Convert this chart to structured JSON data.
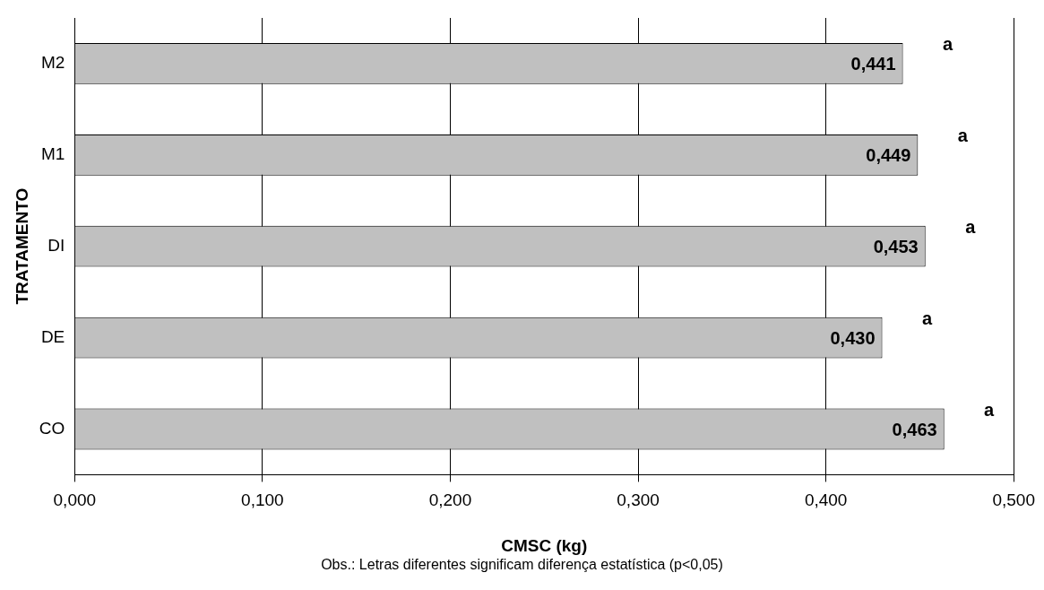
{
  "chart_data": {
    "type": "bar",
    "orientation": "horizontal",
    "xlabel": "CMSC (kg)",
    "ylabel": "TRATAMENTO",
    "categories": [
      "M2",
      "M1",
      "DI",
      "DE",
      "CO"
    ],
    "values": [
      0.441,
      0.449,
      0.453,
      0.43,
      0.463
    ],
    "value_labels": [
      "0,441",
      "0,449",
      "0,453",
      "0,430",
      "0,463"
    ],
    "color": "#c0c0c0",
    "xlim": [
      0,
      0.5
    ],
    "xticks": [
      {
        "value": 0,
        "label": "0,000"
      },
      {
        "value": 0.1,
        "label": "0,100"
      },
      {
        "value": 0.2,
        "label": "0,200"
      },
      {
        "value": 0.3,
        "label": "0,300"
      },
      {
        "value": 0.4,
        "label": "0,400"
      },
      {
        "value": 0.5,
        "label": "0,500"
      }
    ],
    "grid": "x",
    "legend": false,
    "annotations": [
      {
        "text": "a",
        "x": 0.441,
        "y": "M2"
      },
      {
        "text": "a",
        "x": 0.449,
        "y": "M1"
      },
      {
        "text": "a",
        "x": 0.453,
        "y": "DI"
      },
      {
        "text": "a",
        "x": 0.43,
        "y": "DE"
      },
      {
        "text": "a",
        "x": 0.463,
        "y": "CO"
      },
      "Obs.: Letras diferentes significam diferença estatística (p<0,05)"
    ]
  }
}
